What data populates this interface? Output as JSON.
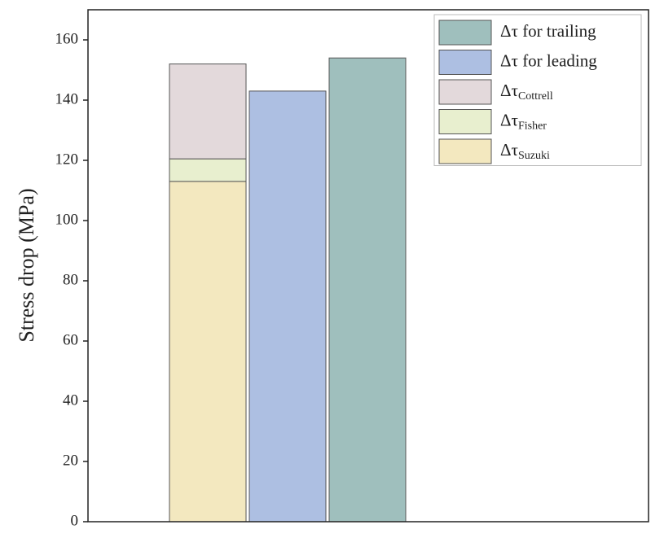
{
  "chart_data": {
    "type": "bar",
    "stacked": true,
    "y_label": "Stress drop (MPa)",
    "categories": [
      null,
      null,
      null
    ],
    "series": [
      {
        "name": "Δτ",
        "subscript": "Suzuki",
        "color": "#f3e8bf",
        "values": [
          113,
          null,
          null
        ]
      },
      {
        "name": "Δτ",
        "subscript": "Fisher",
        "color": "#e8efcf",
        "values": [
          7.5,
          null,
          null
        ]
      },
      {
        "name": "Δτ",
        "subscript": "Cottrell",
        "color": "#e3d9db",
        "values": [
          31.5,
          null,
          null
        ]
      },
      {
        "name": "Δτ  for leading",
        "color": "#adbfe2",
        "values": [
          null,
          143,
          null
        ]
      },
      {
        "name": "Δτ  for trailing",
        "color": "#9fbfbd",
        "values": [
          null,
          null,
          154
        ]
      }
    ],
    "ylim": [
      0,
      170
    ],
    "yticks": [
      0,
      20,
      40,
      60,
      80,
      100,
      120,
      140,
      160
    ],
    "grid": false,
    "legend": "upper right"
  }
}
